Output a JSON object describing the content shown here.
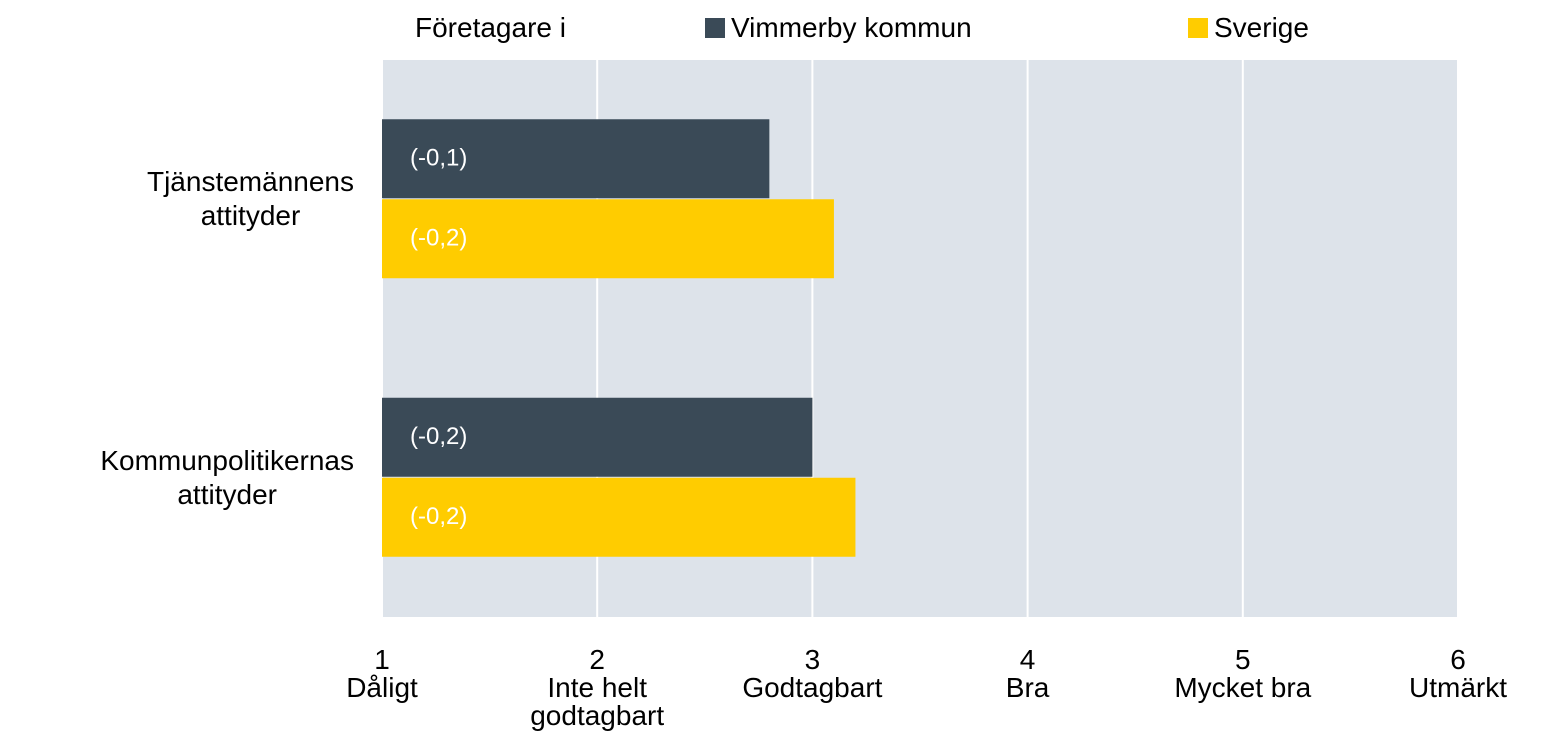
{
  "chart_data": {
    "type": "barh",
    "legend_title": "Företagare i",
    "categories": [
      "Tjänstemännens attityder",
      "Kommunpolitikernas attityder"
    ],
    "series": [
      {
        "name": "Vimmerby kommun",
        "color": "#3a4a57",
        "values": [
          2.8,
          3.0
        ],
        "annotations": [
          "(-0,1)",
          "(-0,2)"
        ]
      },
      {
        "name": "Sverige",
        "color": "#ffcc00",
        "values": [
          3.1,
          3.2
        ],
        "annotations": [
          "(-0,2)",
          "(-0,2)"
        ]
      }
    ],
    "xlim": [
      1,
      6
    ],
    "xticks": [
      {
        "value": 1,
        "label": "Dåligt"
      },
      {
        "value": 2,
        "label": "Inte helt godtagbart"
      },
      {
        "value": 3,
        "label": "Godtagbart"
      },
      {
        "value": 4,
        "label": "Bra"
      },
      {
        "value": 5,
        "label": "Mycket bra"
      },
      {
        "value": 6,
        "label": "Utmärkt"
      }
    ],
    "grid": true,
    "background": "#dde3ea"
  }
}
